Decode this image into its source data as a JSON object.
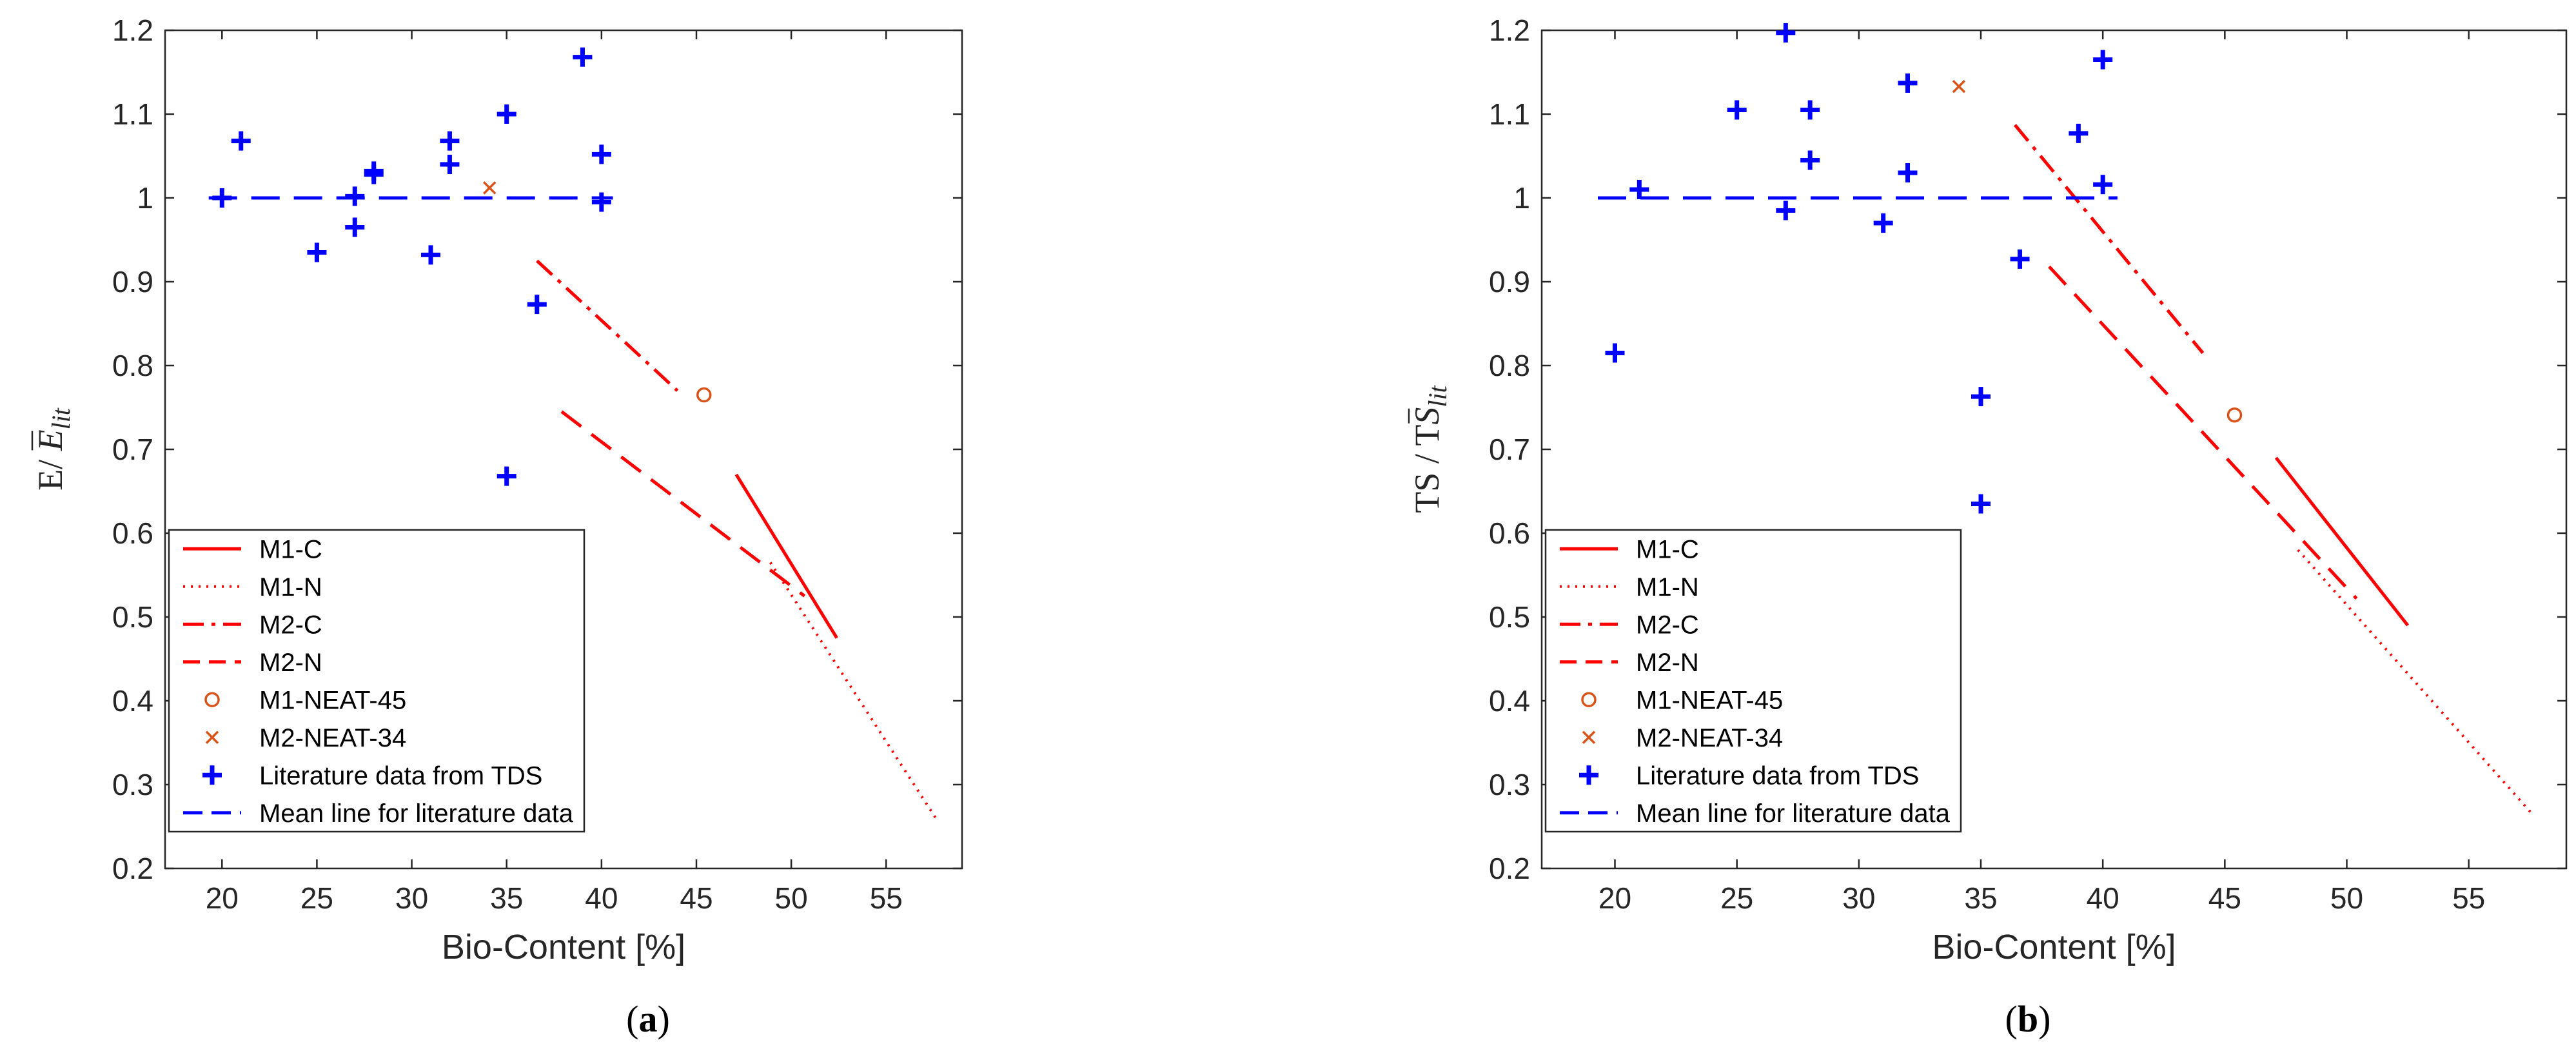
{
  "colors": {
    "red": "#ff0000",
    "orange": "#d95319",
    "blue": "#0000ff",
    "axis": "#262626"
  },
  "chart_data": [
    {
      "type": "scatter",
      "panel": "a",
      "caption": {
        "open": "(",
        "letter": "a",
        "close": ")"
      },
      "xlabel": "Bio-Content [%]",
      "ylabel": {
        "main": "E/ ",
        "sym": "E",
        "sub": "lit"
      },
      "xlim": [
        17,
        59
      ],
      "ylim": [
        0.2,
        1.2
      ],
      "xticks": [
        20,
        25,
        30,
        35,
        40,
        45,
        50,
        55
      ],
      "yticks": [
        0.2,
        0.3,
        0.4,
        0.5,
        0.6,
        0.7,
        0.8,
        0.9,
        1,
        1.1,
        1.2
      ],
      "ytick_labels": [
        "0.2",
        "0.3",
        "0.4",
        "0.5",
        "0.6",
        "0.7",
        "0.8",
        "0.9",
        "1",
        "1.1",
        "1.2"
      ],
      "legend_location": "bottom-left",
      "series": [
        {
          "name": "M1-C",
          "style": "solid",
          "points": [
            [
              47.1,
              0.67
            ],
            [
              52.4,
              0.475
            ]
          ]
        },
        {
          "name": "M1-N",
          "style": "dotted",
          "points": [
            [
              48.9,
              0.565
            ],
            [
              57.7,
              0.257
            ]
          ]
        },
        {
          "name": "M2-C",
          "style": "dashdot",
          "points": [
            [
              36.6,
              0.925
            ],
            [
              44.0,
              0.77
            ]
          ]
        },
        {
          "name": "M2-N",
          "style": "dashed",
          "points": [
            [
              37.9,
              0.745
            ],
            [
              50.7,
              0.525
            ]
          ]
        },
        {
          "name": "M1-NEAT-45",
          "style": "circle",
          "points": [
            [
              45.4,
              0.765
            ]
          ]
        },
        {
          "name": "M2-NEAT-34",
          "style": "x",
          "points": [
            [
              34.1,
              1.012
            ]
          ]
        },
        {
          "name": "Literature data from TDS",
          "style": "plus",
          "points": [
            [
              20,
              1.0
            ],
            [
              21,
              1.068
            ],
            [
              25,
              0.935
            ],
            [
              27,
              0.965
            ],
            [
              27,
              1.002
            ],
            [
              28,
              1.028
            ],
            [
              28,
              1.032
            ],
            [
              31,
              0.932
            ],
            [
              32,
              1.04
            ],
            [
              32,
              1.068
            ],
            [
              35,
              1.1
            ],
            [
              35,
              0.668
            ],
            [
              36.6,
              0.873
            ],
            [
              39,
              1.168
            ],
            [
              40,
              1.052
            ],
            [
              40,
              0.995
            ]
          ]
        },
        {
          "name": "Mean line for literature data",
          "style": "meanline",
          "points": [
            [
              19.3,
              1.0
            ],
            [
              40.6,
              1.0
            ]
          ]
        }
      ]
    },
    {
      "type": "scatter",
      "panel": "b",
      "caption": {
        "open": "(",
        "letter": "b",
        "close": ")"
      },
      "xlabel": "Bio-Content [%]",
      "ylabel": {
        "main": "TS / T",
        "sym": "S",
        "sub": "lit"
      },
      "xlim": [
        17,
        59
      ],
      "ylim": [
        0.2,
        1.2
      ],
      "xticks": [
        20,
        25,
        30,
        35,
        40,
        45,
        50,
        55
      ],
      "yticks": [
        0.2,
        0.3,
        0.4,
        0.5,
        0.6,
        0.7,
        0.8,
        0.9,
        1,
        1.1,
        1.2
      ],
      "ytick_labels": [
        "0.2",
        "0.3",
        "0.4",
        "0.5",
        "0.6",
        "0.7",
        "0.8",
        "0.9",
        "1",
        "1.1",
        "1.2"
      ],
      "legend_location": "bottom-left",
      "series": [
        {
          "name": "M1-C",
          "style": "solid",
          "points": [
            [
              47.1,
              0.69
            ],
            [
              52.5,
              0.49
            ]
          ]
        },
        {
          "name": "M1-N",
          "style": "dotted",
          "points": [
            [
              48.0,
              0.58
            ],
            [
              57.6,
              0.265
            ]
          ]
        },
        {
          "name": "M2-C",
          "style": "dashdot",
          "points": [
            [
              36.4,
              1.087
            ],
            [
              44.1,
              0.815
            ]
          ]
        },
        {
          "name": "M2-N",
          "style": "dashed",
          "points": [
            [
              37.8,
              0.918
            ],
            [
              50.4,
              0.522
            ]
          ]
        },
        {
          "name": "M1-NEAT-45",
          "style": "circle",
          "points": [
            [
              45.4,
              0.741
            ]
          ]
        },
        {
          "name": "M2-NEAT-34",
          "style": "x",
          "points": [
            [
              34.1,
              1.133
            ]
          ]
        },
        {
          "name": "Literature data from TDS",
          "style": "plus",
          "points": [
            [
              20,
              0.815
            ],
            [
              21,
              1.01
            ],
            [
              25,
              1.105
            ],
            [
              27,
              0.985
            ],
            [
              27,
              1.197
            ],
            [
              28,
              1.105
            ],
            [
              28,
              1.045
            ],
            [
              31,
              0.97
            ],
            [
              32,
              1.137
            ],
            [
              32,
              1.03
            ],
            [
              35,
              0.763
            ],
            [
              35,
              0.635
            ],
            [
              36.6,
              0.927
            ],
            [
              39,
              1.077
            ],
            [
              40,
              1.165
            ],
            [
              40,
              1.016
            ]
          ]
        },
        {
          "name": "Mean line for literature data",
          "style": "meanline",
          "points": [
            [
              19.3,
              1.0
            ],
            [
              40.6,
              1.0
            ]
          ]
        }
      ]
    }
  ]
}
